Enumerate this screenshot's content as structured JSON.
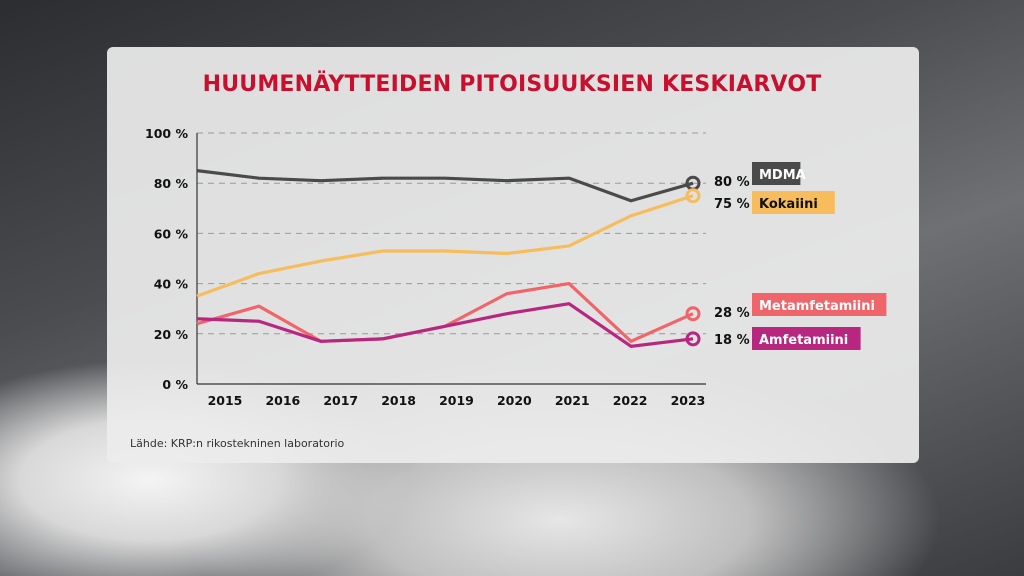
{
  "chart_data": {
    "type": "line",
    "title": "HUUMENÄYTTEIDEN PITOISUUKSIEN KESKIARVOT",
    "source": "Lähde: KRP:n rikostekninen laboratorio",
    "categories": [
      "2015",
      "2016",
      "2017",
      "2018",
      "2019",
      "2020",
      "2021",
      "2022",
      "2023"
    ],
    "yticks": [
      "0 %",
      "20 %",
      "40 %",
      "60 %",
      "80 %",
      "100 %"
    ],
    "ylim": [
      0,
      100
    ],
    "grid": true,
    "series": [
      {
        "name": "MDMA",
        "end_label": "80 %",
        "color": "#4a4a4a",
        "text_color": "#ffffff",
        "values": [
          85,
          82,
          81,
          82,
          82,
          81,
          82,
          73,
          80
        ]
      },
      {
        "name": "Kokaiini",
        "end_label": "75 %",
        "color": "#f7bc5c",
        "text_color": "#111111",
        "values": [
          35,
          44,
          49,
          53,
          53,
          52,
          55,
          67,
          75
        ]
      },
      {
        "name": "Metamfetamiini",
        "end_label": "28 %",
        "color": "#f0656a",
        "text_color": "#ffffff",
        "values": [
          24,
          31,
          17,
          18,
          23,
          36,
          40,
          17,
          28
        ]
      },
      {
        "name": "Amfetamiini",
        "end_label": "18 %",
        "color": "#b8277f",
        "text_color": "#ffffff",
        "values": [
          26,
          25,
          17,
          18,
          23,
          28,
          32,
          15,
          18
        ]
      }
    ]
  }
}
